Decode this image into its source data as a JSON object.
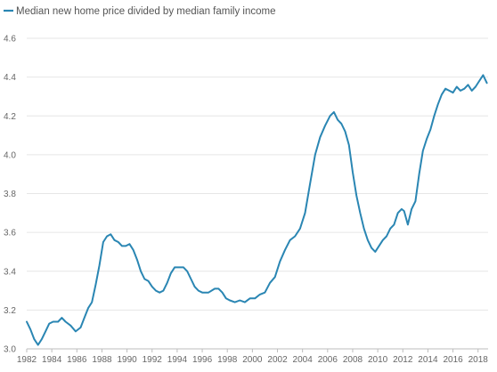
{
  "chart_data": {
    "type": "line",
    "xlabel": "",
    "ylabel": "",
    "xlim": [
      1982,
      2018.8
    ],
    "ylim": [
      3.0,
      4.6
    ],
    "grid": true,
    "legend": "top-left",
    "x_ticks": [
      "1982",
      "1984",
      "1986",
      "1988",
      "1990",
      "1992",
      "1994",
      "1996",
      "1998",
      "2000",
      "2002",
      "2004",
      "2006",
      "2008",
      "2010",
      "2012",
      "2014",
      "2016",
      "2018"
    ],
    "y_ticks": [
      "3.0",
      "3.2",
      "3.4",
      "3.6",
      "3.8",
      "4.0",
      "4.2",
      "4.4",
      "4.6"
    ],
    "series": [
      {
        "name": "Median new home price divided by median family income",
        "color": "#2a86b3",
        "points": [
          [
            1982.0,
            3.14
          ],
          [
            1982.3,
            3.1
          ],
          [
            1982.6,
            3.05
          ],
          [
            1982.9,
            3.02
          ],
          [
            1983.2,
            3.05
          ],
          [
            1983.5,
            3.09
          ],
          [
            1983.8,
            3.13
          ],
          [
            1984.1,
            3.14
          ],
          [
            1984.5,
            3.14
          ],
          [
            1984.8,
            3.16
          ],
          [
            1985.1,
            3.14
          ],
          [
            1985.5,
            3.12
          ],
          [
            1985.9,
            3.09
          ],
          [
            1986.3,
            3.11
          ],
          [
            1986.6,
            3.16
          ],
          [
            1986.9,
            3.21
          ],
          [
            1987.2,
            3.24
          ],
          [
            1987.5,
            3.33
          ],
          [
            1987.8,
            3.43
          ],
          [
            1988.1,
            3.55
          ],
          [
            1988.4,
            3.58
          ],
          [
            1988.7,
            3.59
          ],
          [
            1989.0,
            3.56
          ],
          [
            1989.3,
            3.55
          ],
          [
            1989.6,
            3.53
          ],
          [
            1989.9,
            3.53
          ],
          [
            1990.2,
            3.54
          ],
          [
            1990.5,
            3.51
          ],
          [
            1990.8,
            3.46
          ],
          [
            1991.1,
            3.4
          ],
          [
            1991.4,
            3.36
          ],
          [
            1991.7,
            3.35
          ],
          [
            1992.0,
            3.32
          ],
          [
            1992.3,
            3.3
          ],
          [
            1992.6,
            3.29
          ],
          [
            1992.9,
            3.3
          ],
          [
            1993.2,
            3.34
          ],
          [
            1993.5,
            3.39
          ],
          [
            1993.8,
            3.42
          ],
          [
            1994.1,
            3.42
          ],
          [
            1994.5,
            3.42
          ],
          [
            1994.8,
            3.4
          ],
          [
            1995.1,
            3.36
          ],
          [
            1995.4,
            3.32
          ],
          [
            1995.7,
            3.3
          ],
          [
            1996.0,
            3.29
          ],
          [
            1996.5,
            3.29
          ],
          [
            1997.0,
            3.31
          ],
          [
            1997.3,
            3.31
          ],
          [
            1997.6,
            3.29
          ],
          [
            1997.9,
            3.26
          ],
          [
            1998.2,
            3.25
          ],
          [
            1998.6,
            3.24
          ],
          [
            1999.0,
            3.25
          ],
          [
            1999.4,
            3.24
          ],
          [
            1999.8,
            3.26
          ],
          [
            2000.2,
            3.26
          ],
          [
            2000.6,
            3.28
          ],
          [
            2001.0,
            3.29
          ],
          [
            2001.4,
            3.34
          ],
          [
            2001.8,
            3.37
          ],
          [
            2002.2,
            3.45
          ],
          [
            2002.6,
            3.51
          ],
          [
            2003.0,
            3.56
          ],
          [
            2003.4,
            3.58
          ],
          [
            2003.8,
            3.62
          ],
          [
            2004.2,
            3.7
          ],
          [
            2004.6,
            3.85
          ],
          [
            2005.0,
            4.0
          ],
          [
            2005.4,
            4.09
          ],
          [
            2005.8,
            4.15
          ],
          [
            2006.2,
            4.2
          ],
          [
            2006.5,
            4.22
          ],
          [
            2006.8,
            4.18
          ],
          [
            2007.1,
            4.16
          ],
          [
            2007.4,
            4.12
          ],
          [
            2007.7,
            4.05
          ],
          [
            2008.0,
            3.91
          ],
          [
            2008.3,
            3.79
          ],
          [
            2008.6,
            3.7
          ],
          [
            2008.9,
            3.62
          ],
          [
            2009.2,
            3.56
          ],
          [
            2009.5,
            3.52
          ],
          [
            2009.8,
            3.5
          ],
          [
            2010.1,
            3.53
          ],
          [
            2010.4,
            3.56
          ],
          [
            2010.7,
            3.58
          ],
          [
            2011.0,
            3.62
          ],
          [
            2011.3,
            3.64
          ],
          [
            2011.6,
            3.7
          ],
          [
            2011.9,
            3.72
          ],
          [
            2012.1,
            3.71
          ],
          [
            2012.4,
            3.64
          ],
          [
            2012.7,
            3.72
          ],
          [
            2013.0,
            3.76
          ],
          [
            2013.3,
            3.9
          ],
          [
            2013.6,
            4.02
          ],
          [
            2013.9,
            4.08
          ],
          [
            2014.2,
            4.13
          ],
          [
            2014.5,
            4.2
          ],
          [
            2014.8,
            4.26
          ],
          [
            2015.1,
            4.31
          ],
          [
            2015.4,
            4.34
          ],
          [
            2015.7,
            4.33
          ],
          [
            2016.0,
            4.32
          ],
          [
            2016.3,
            4.35
          ],
          [
            2016.6,
            4.33
          ],
          [
            2016.9,
            4.34
          ],
          [
            2017.2,
            4.36
          ],
          [
            2017.5,
            4.33
          ],
          [
            2017.8,
            4.35
          ],
          [
            2018.1,
            4.38
          ],
          [
            2018.4,
            4.41
          ],
          [
            2018.7,
            4.37
          ]
        ]
      }
    ]
  }
}
